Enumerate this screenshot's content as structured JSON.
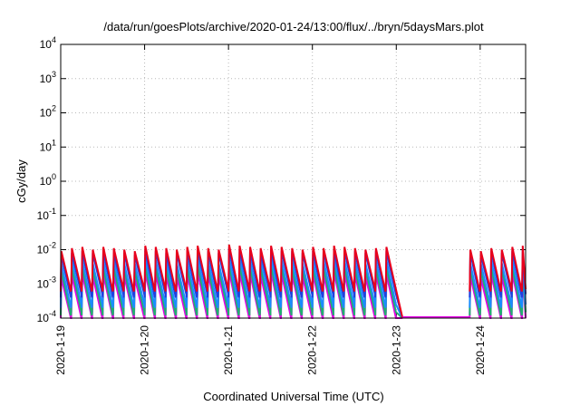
{
  "chart_data": {
    "type": "line",
    "title": "/data/run/goesPlots/archive/2020-01-24/13:00/flux/../bryn/5daysMars.plot",
    "xlabel": "Coordinated Universal Time (UTC)",
    "ylabel": "cGy/day",
    "yscale": "log",
    "ylim": [
      0.0001,
      10000
    ],
    "y_ticks": [
      {
        "base": "10",
        "exp": "-4"
      },
      {
        "base": "10",
        "exp": "-3"
      },
      {
        "base": "10",
        "exp": "-2"
      },
      {
        "base": "10",
        "exp": "-1"
      },
      {
        "base": "10",
        "exp": "0"
      },
      {
        "base": "10",
        "exp": "1"
      },
      {
        "base": "10",
        "exp": "2"
      },
      {
        "base": "10",
        "exp": "3"
      },
      {
        "base": "10",
        "exp": "4"
      }
    ],
    "xlim": [
      "2020-01-19T00:00",
      "2020-01-24T13:00"
    ],
    "x_ticks": [
      "2020-1-19",
      "2020-1-20",
      "2020-1-21",
      "2020-1-22",
      "2020-1-23",
      "2020-1-24"
    ],
    "grid": true,
    "legend": "none",
    "sawtooth_period_hours": 3,
    "data_gap": [
      "2020-01-23T00:00",
      "2020-01-23T21:00"
    ],
    "series": [
      {
        "color": "#e8001c",
        "peaks": [
          0.009,
          0.011,
          0.012,
          0.01,
          0.012,
          0.011,
          0.01,
          0.009,
          0.013,
          0.012,
          0.011,
          0.01,
          0.012,
          0.013,
          0.011,
          0.01,
          0.014,
          0.013,
          0.012,
          0.011,
          0.013,
          0.012,
          0.011,
          0.01,
          0.012,
          0.011,
          0.013,
          0.012,
          0.011,
          0.01,
          0.011,
          0.012,
          0.01,
          0.009,
          0.011,
          0.01,
          0.012,
          0.013,
          0.012,
          0.01,
          0.011,
          0.015,
          0.012,
          0.011,
          0.012
        ],
        "troughs": [
          0.0006,
          0.0007
        ]
      },
      {
        "color": "#2040e0",
        "peaks": [
          0.007,
          0.008,
          0.009,
          0.008,
          0.009,
          0.008,
          0.008,
          0.007,
          0.01,
          0.009,
          0.008,
          0.008,
          0.009,
          0.01,
          0.009,
          0.008,
          0.011,
          0.01,
          0.009,
          0.008,
          0.01,
          0.009,
          0.009,
          0.008,
          0.009,
          0.009,
          0.01,
          0.009,
          0.009,
          0.008,
          0.009,
          0.009,
          0.008,
          0.007,
          0.009,
          0.008,
          0.009,
          0.01,
          0.009,
          0.008,
          0.009,
          0.011,
          0.009,
          0.009,
          0.009
        ],
        "troughs": [
          0.0004,
          0.0005
        ]
      },
      {
        "color": "#1a8cff",
        "peaks": [
          0.004,
          0.005,
          0.005,
          0.004,
          0.005,
          0.005,
          0.004,
          0.004,
          0.006,
          0.005,
          0.005,
          0.004,
          0.005,
          0.006,
          0.005,
          0.004,
          0.006,
          0.006,
          0.005,
          0.005,
          0.006,
          0.005,
          0.005,
          0.004,
          0.005,
          0.005,
          0.006,
          0.005,
          0.005,
          0.004,
          0.005,
          0.005,
          0.004,
          0.004,
          0.005,
          0.004,
          0.005,
          0.006,
          0.005,
          0.004,
          0.005,
          0.006,
          0.005,
          0.005,
          0.005
        ],
        "troughs": [
          0.0002,
          0.00025
        ]
      },
      {
        "color": "#20b070",
        "peaks": [
          0.0025,
          0.003,
          0.0032,
          0.0028,
          0.003,
          0.003,
          0.0028,
          0.0025,
          0.0035,
          0.0032,
          0.003,
          0.0028,
          0.003,
          0.0035,
          0.003,
          0.0028,
          0.0038,
          0.0035,
          0.0032,
          0.003,
          0.0035,
          0.0032,
          0.003,
          0.0028,
          0.0032,
          0.003,
          0.0035,
          0.0032,
          0.003,
          0.0028,
          0.003,
          0.0032,
          0.0028,
          0.0025,
          0.003,
          0.0028,
          0.0032,
          0.0035,
          0.0032,
          0.0028,
          0.003,
          0.004,
          0.0032,
          0.003,
          0.0032
        ],
        "troughs": [
          0.00012,
          0.00015
        ]
      },
      {
        "color": "#e600e6",
        "peaks": [
          0.0015,
          0.0018,
          0.002,
          0.0017,
          0.0019,
          0.0018,
          0.0017,
          0.0015,
          0.0022,
          0.002,
          0.0018,
          0.0017,
          0.0019,
          0.0022,
          0.0019,
          0.0017,
          0.0024,
          0.0022,
          0.002,
          0.0018,
          0.0022,
          0.002,
          0.0019,
          0.0017,
          0.002,
          0.0019,
          0.0022,
          0.002,
          0.0019,
          0.0017,
          0.0019,
          0.002,
          0.0017,
          0.0015,
          0.0019,
          0.0017,
          0.002,
          0.0022,
          0.002,
          0.0017,
          0.0019,
          0.0025,
          0.002,
          0.0019,
          0.002
        ],
        "troughs": [
          5e-05,
          7e-05
        ]
      }
    ]
  }
}
